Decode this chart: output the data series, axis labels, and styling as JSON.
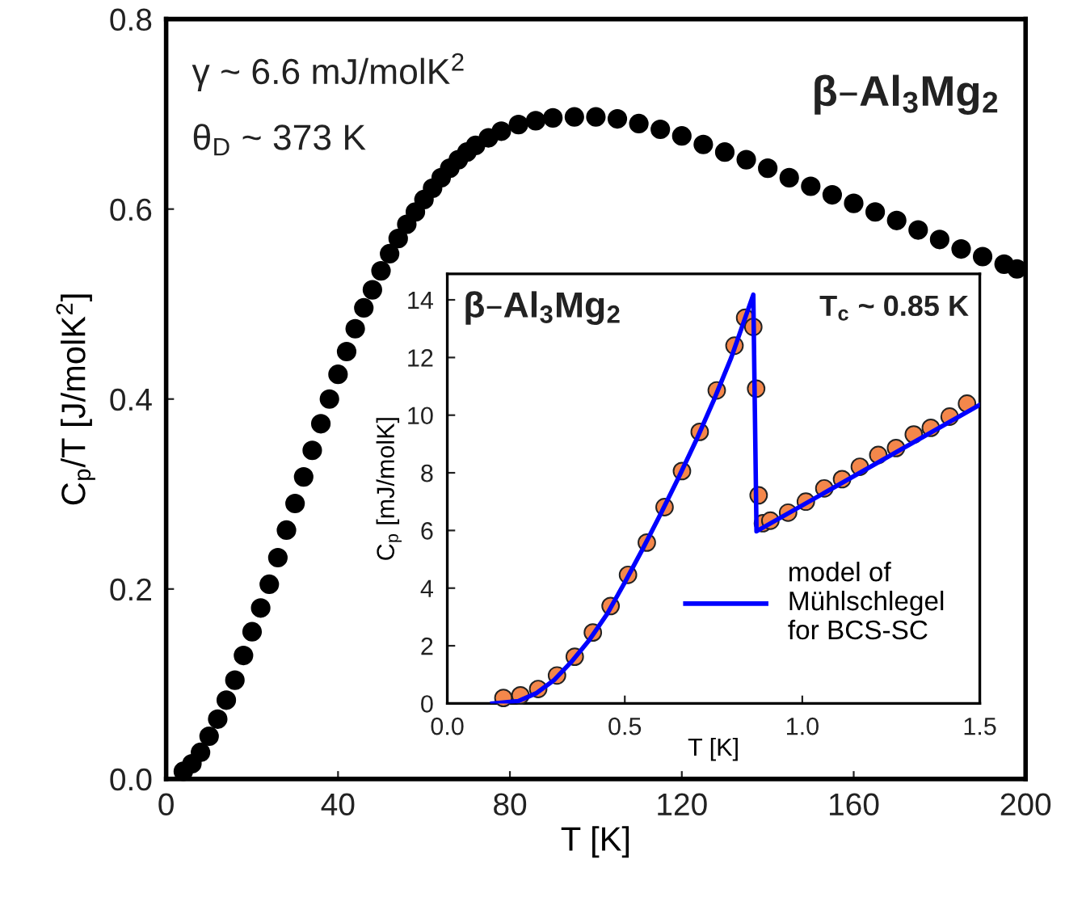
{
  "chart_data": [
    {
      "type": "scatter",
      "xlabel": "T [K]",
      "ylabel": "C$_{p}$/T [J/molK$^{2}$]",
      "xlim": [
        0,
        200
      ],
      "ylim": [
        0,
        0.8
      ],
      "xticks": [
        0,
        40,
        80,
        120,
        160,
        200
      ],
      "yticks": [
        {
          "value": 0,
          "label": "0.0"
        },
        0.2,
        0.4,
        0.6,
        0.8
      ],
      "grid": false,
      "legend": false,
      "marker": "circle",
      "annotations": [
        "γ ~ 6.6 mJ/molK$^{2}$",
        "θ$_{D}$ ~ 373 K",
        "β–Al$_{3}$Mg$_{2}$"
      ],
      "series": [
        {
          "color": "#000000",
          "x": [
            4,
            6,
            8,
            10,
            12,
            14,
            16,
            18,
            20,
            22,
            24,
            26,
            28,
            30,
            32,
            34,
            36,
            38,
            40,
            42,
            44,
            46,
            48,
            50,
            52,
            54,
            56,
            58,
            60,
            62,
            64,
            66,
            68,
            70,
            72,
            75,
            78,
            82,
            86,
            90,
            95,
            100,
            105,
            110,
            115,
            120,
            125,
            130,
            135,
            140,
            145,
            150,
            155,
            160,
            165,
            170,
            175,
            180,
            185,
            190,
            195,
            198
          ],
          "values": [
            0.008,
            0.016,
            0.028,
            0.045,
            0.063,
            0.083,
            0.104,
            0.13,
            0.155,
            0.18,
            0.205,
            0.233,
            0.262,
            0.29,
            0.318,
            0.346,
            0.374,
            0.4,
            0.426,
            0.45,
            0.474,
            0.496,
            0.515,
            0.535,
            0.553,
            0.569,
            0.584,
            0.597,
            0.61,
            0.622,
            0.633,
            0.643,
            0.652,
            0.66,
            0.667,
            0.675,
            0.682,
            0.689,
            0.693,
            0.696,
            0.697,
            0.697,
            0.695,
            0.69,
            0.684,
            0.677,
            0.668,
            0.66,
            0.652,
            0.643,
            0.633,
            0.624,
            0.615,
            0.606,
            0.597,
            0.588,
            0.578,
            0.568,
            0.558,
            0.55,
            0.542,
            0.537
          ]
        }
      ]
    },
    {
      "type": "scatter",
      "xlabel": "T [K]",
      "ylabel": "C$_{p}$ [mJ/molK]",
      "xlim": [
        0,
        1.5
      ],
      "ylim": [
        0,
        14.9
      ],
      "xticks": [
        {
          "value": 0,
          "label": "0.0"
        },
        0.5,
        {
          "value": 1,
          "label": "1.0"
        },
        1.5
      ],
      "yticks": [
        0,
        2,
        4,
        6,
        8,
        10,
        12,
        14
      ],
      "grid": false,
      "legend": "bottom right",
      "marker": "circle",
      "annotations": [
        "β–Al$_{3}$Mg$_{2}$",
        "T$_{c}$ ~ 0.85 K"
      ],
      "series": [
        {
          "type": "scatter",
          "color": "#f4874b",
          "x": [
            0.158,
            0.206,
            0.256,
            0.309,
            0.359,
            0.41,
            0.46,
            0.509,
            0.562,
            0.612,
            0.661,
            0.711,
            0.759,
            0.809,
            0.839,
            0.862,
            0.87,
            0.877,
            0.889,
            0.91,
            0.96,
            1.01,
            1.062,
            1.112,
            1.162,
            1.214,
            1.264,
            1.314,
            1.362,
            1.415,
            1.464
          ],
          "values": [
            0.19,
            0.28,
            0.5,
            0.97,
            1.62,
            2.46,
            3.38,
            4.46,
            5.58,
            6.81,
            8.06,
            9.42,
            10.86,
            12.41,
            13.38,
            13.06,
            10.92,
            7.22,
            6.25,
            6.34,
            6.62,
            7.0,
            7.46,
            7.78,
            8.21,
            8.62,
            8.86,
            9.33,
            9.56,
            9.95,
            10.4
          ]
        },
        {
          "type": "line",
          "name": "model of\nMühlschlegel\nfor BCS-SC",
          "color": "#0000ff",
          "marker": "none",
          "x": [
            0.127,
            0.2,
            0.25,
            0.3,
            0.35,
            0.4,
            0.45,
            0.5,
            0.55,
            0.6,
            0.65,
            0.7,
            0.75,
            0.8,
            0.862,
            0.871,
            1.5
          ],
          "values": [
            0,
            0.08,
            0.35,
            0.8,
            1.45,
            2.2,
            3.1,
            4.2,
            5.35,
            6.55,
            7.8,
            9.1,
            10.5,
            12.0,
            14.18,
            5.97,
            10.36
          ]
        }
      ]
    }
  ]
}
